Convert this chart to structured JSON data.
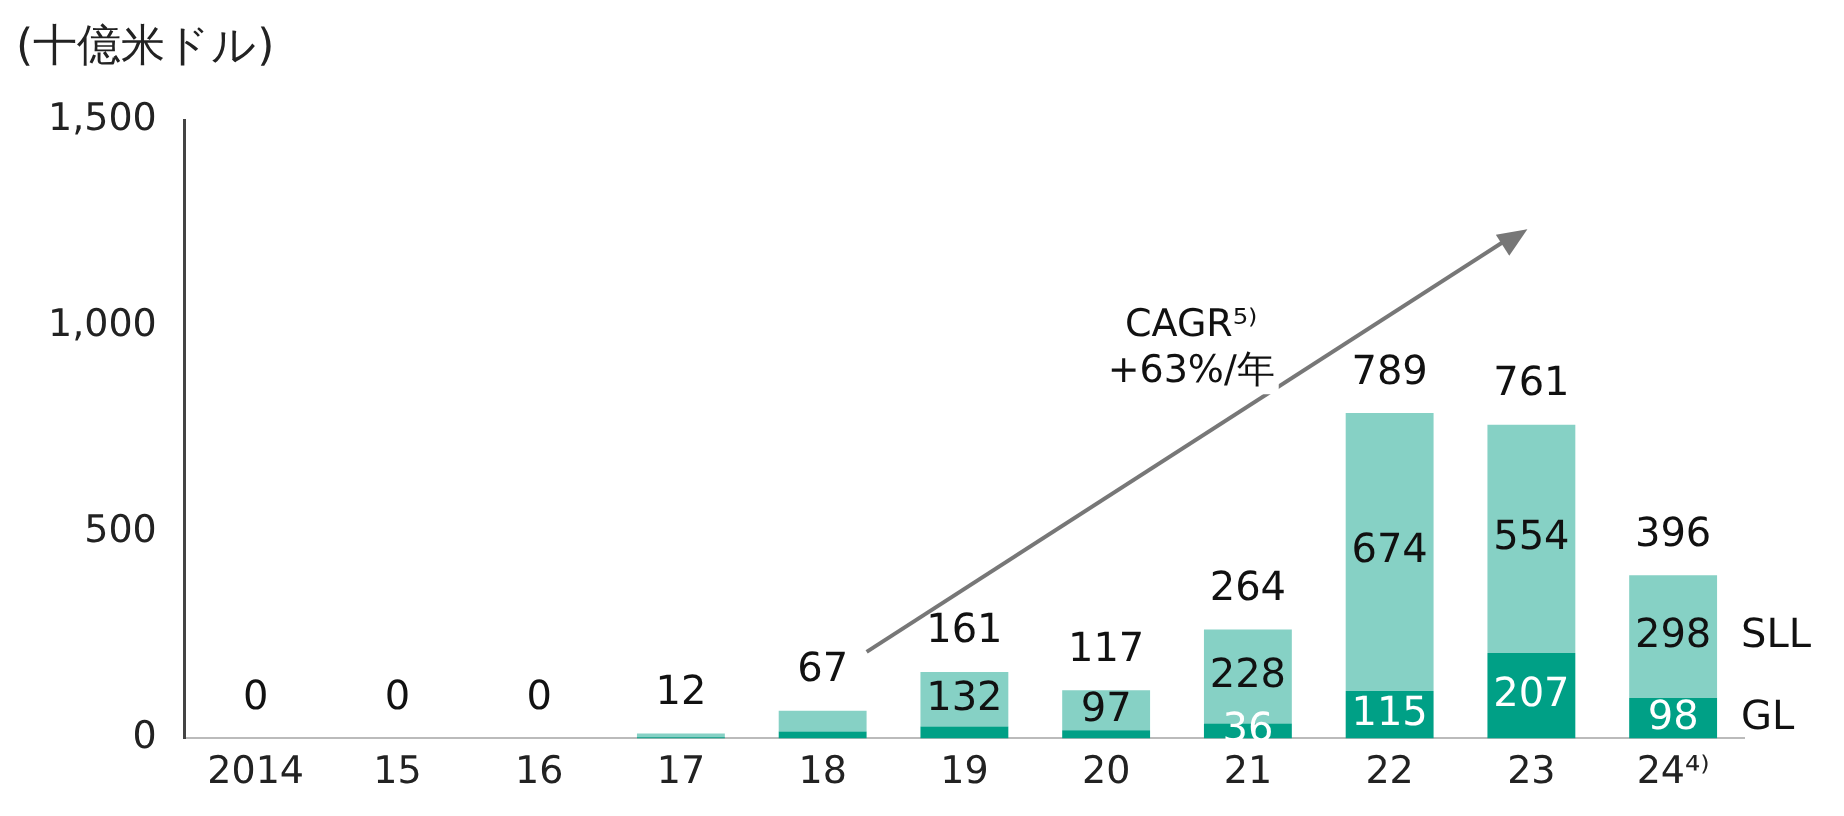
{
  "chart_data": {
    "type": "bar",
    "stacked": true,
    "ylabel": "(十億米ドル)",
    "categories": [
      "2014",
      "15",
      "16",
      "17",
      "18",
      "19",
      "20",
      "21",
      "22",
      "23",
      "24⁴⁾"
    ],
    "series": [
      {
        "name": "GL",
        "color": "#00a086",
        "values": [
          0,
          0,
          0,
          3,
          17,
          29,
          20,
          36,
          115,
          207,
          98
        ],
        "value_labels": [
          null,
          null,
          null,
          null,
          null,
          null,
          null,
          "36",
          "115",
          "207",
          "98"
        ]
      },
      {
        "name": "SLL",
        "color": "#86d1c5",
        "values": [
          0,
          0,
          0,
          9,
          50,
          132,
          97,
          228,
          674,
          554,
          298
        ],
        "value_labels": [
          null,
          null,
          null,
          null,
          null,
          "132",
          "97",
          "228",
          "674",
          "554",
          "298"
        ]
      }
    ],
    "totals": [
      "0",
      "0",
      "0",
      "12",
      "67",
      "161",
      "117",
      "264",
      "789",
      "761",
      "396"
    ],
    "ylim": [
      0,
      1500
    ],
    "yticks": [
      0,
      500,
      {
        "value": 1000,
        "label": "1,000"
      },
      {
        "value": 1500,
        "label": "1,500"
      }
    ],
    "grid": false,
    "annotations": [
      "CAGR⁵⁾ +63%/年"
    ]
  }
}
